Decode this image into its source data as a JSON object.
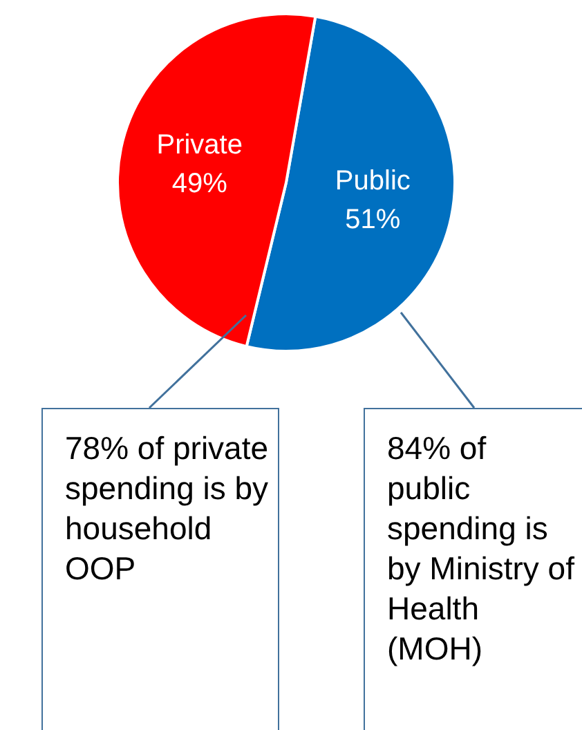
{
  "chart_data": {
    "type": "pie",
    "categories": [
      "Public",
      "Private"
    ],
    "values": [
      51,
      49
    ],
    "colors": [
      "#0070c0",
      "#ff0000"
    ],
    "value_labels": [
      "51%",
      "49%"
    ],
    "annotations": [
      "78% of private spending is by household OOP",
      "84% of public spending is by Ministry of Health (MOH)"
    ]
  }
}
